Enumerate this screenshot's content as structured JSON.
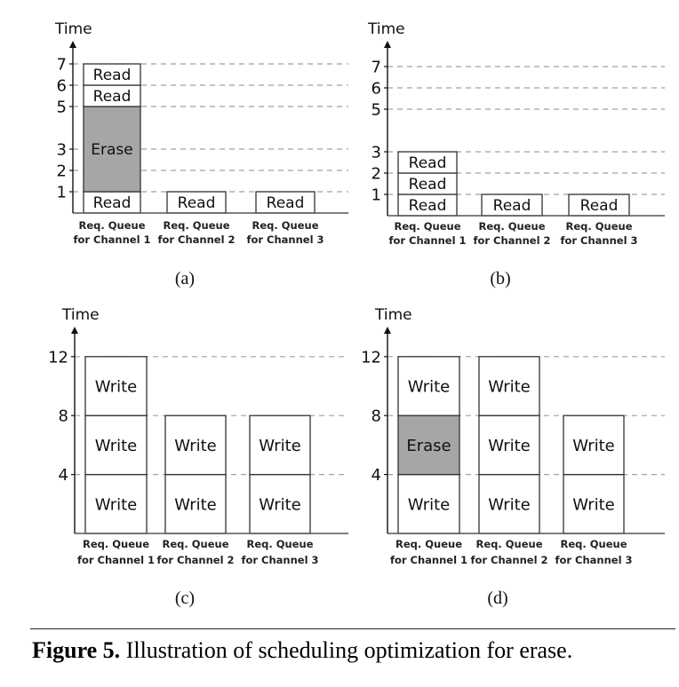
{
  "panels": [
    {
      "id": "a",
      "label": "(a)",
      "y_title": "Time",
      "ticks": [
        1,
        2,
        3,
        5,
        6,
        7
      ],
      "gridlines": [
        1,
        2,
        3,
        5,
        6,
        7
      ],
      "queues": [
        {
          "label_line1": "Req. Queue",
          "label_line2": "for Channel 1",
          "blocks": [
            {
              "type": "Read",
              "start": 0,
              "end": 1
            },
            {
              "type": "Erase",
              "start": 1,
              "end": 5
            },
            {
              "type": "Read",
              "start": 5,
              "end": 6
            },
            {
              "type": "Read",
              "start": 6,
              "end": 7
            }
          ]
        },
        {
          "label_line1": "Req. Queue",
          "label_line2": "for Channel 2",
          "blocks": [
            {
              "type": "Read",
              "start": 0,
              "end": 1
            }
          ]
        },
        {
          "label_line1": "Req. Queue",
          "label_line2": "for Channel 3",
          "blocks": [
            {
              "type": "Read",
              "start": 0,
              "end": 1
            }
          ]
        }
      ]
    },
    {
      "id": "b",
      "label": "(b)",
      "y_title": "Time",
      "ticks": [
        1,
        2,
        3,
        5,
        6,
        7
      ],
      "gridlines": [
        1,
        2,
        3,
        5,
        6,
        7
      ],
      "queues": [
        {
          "label_line1": "Req. Queue",
          "label_line2": "for Channel 1",
          "blocks": [
            {
              "type": "Read",
              "start": 0,
              "end": 1
            },
            {
              "type": "Read",
              "start": 1,
              "end": 2
            },
            {
              "type": "Read",
              "start": 2,
              "end": 3
            }
          ]
        },
        {
          "label_line1": "Req. Queue",
          "label_line2": "for Channel 2",
          "blocks": [
            {
              "type": "Read",
              "start": 0,
              "end": 1
            }
          ]
        },
        {
          "label_line1": "Req. Queue",
          "label_line2": "for Channel 3",
          "blocks": [
            {
              "type": "Read",
              "start": 0,
              "end": 1
            }
          ]
        }
      ]
    },
    {
      "id": "c",
      "label": "(c)",
      "y_title": "Time",
      "ticks": [
        4,
        8,
        12
      ],
      "gridlines": [
        4,
        8,
        12
      ],
      "queues": [
        {
          "label_line1": "Req. Queue",
          "label_line2": "for Channel 1",
          "blocks": [
            {
              "type": "Write",
              "start": 0,
              "end": 4
            },
            {
              "type": "Write",
              "start": 4,
              "end": 8
            },
            {
              "type": "Write",
              "start": 8,
              "end": 12
            }
          ]
        },
        {
          "label_line1": "Req. Queue",
          "label_line2": "for Channel 2",
          "blocks": [
            {
              "type": "Write",
              "start": 0,
              "end": 4
            },
            {
              "type": "Write",
              "start": 4,
              "end": 8
            }
          ]
        },
        {
          "label_line1": "Req. Queue",
          "label_line2": "for Channel 3",
          "blocks": [
            {
              "type": "Write",
              "start": 0,
              "end": 4
            },
            {
              "type": "Write",
              "start": 4,
              "end": 8
            }
          ]
        }
      ]
    },
    {
      "id": "d",
      "label": "(d)",
      "y_title": "Time",
      "ticks": [
        4,
        8,
        12
      ],
      "gridlines": [
        4,
        8,
        12
      ],
      "queues": [
        {
          "label_line1": "Req. Queue",
          "label_line2": "for Channel 1",
          "blocks": [
            {
              "type": "Write",
              "start": 0,
              "end": 4
            },
            {
              "type": "Erase",
              "start": 4,
              "end": 8
            },
            {
              "type": "Write",
              "start": 8,
              "end": 12
            }
          ]
        },
        {
          "label_line1": "Req. Queue",
          "label_line2": "for Channel 2",
          "blocks": [
            {
              "type": "Write",
              "start": 0,
              "end": 4
            },
            {
              "type": "Write",
              "start": 4,
              "end": 8
            },
            {
              "type": "Write",
              "start": 8,
              "end": 12
            }
          ]
        },
        {
          "label_line1": "Req. Queue",
          "label_line2": "for Channel 3",
          "blocks": [
            {
              "type": "Write",
              "start": 0,
              "end": 4
            },
            {
              "type": "Write",
              "start": 4,
              "end": 8
            }
          ]
        }
      ]
    }
  ],
  "colors": {
    "erase_fill": "#a6a6a6",
    "block_fill": "#ffffff",
    "stroke": "#333333",
    "grid": "#a0a0a0"
  },
  "caption": {
    "figure_label": "Figure 5.",
    "text": "Illustration of scheduling optimization for erase."
  }
}
